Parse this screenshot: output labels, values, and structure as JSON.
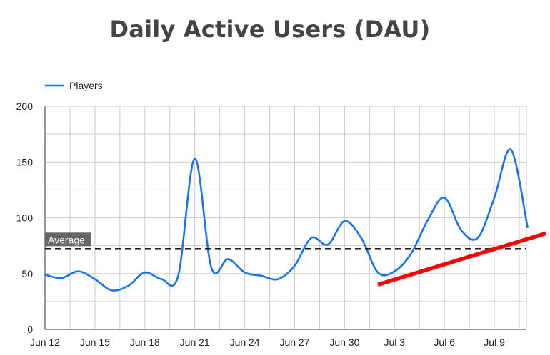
{
  "chart_data": {
    "type": "line",
    "title": "Daily Active Users (DAU)",
    "xlabel": "",
    "ylabel": "",
    "ylim": [
      0,
      200
    ],
    "yticks": [
      0,
      50,
      100,
      150,
      200
    ],
    "x_tick_labels": [
      "Jun 12",
      "Jun 15",
      "Jun 18",
      "Jun 21",
      "Jun 24",
      "Jun 27",
      "Jun 30",
      "Jul 3",
      "Jul 6",
      "Jul 9"
    ],
    "grid": true,
    "legend_position": "top-left",
    "series": [
      {
        "name": "Players",
        "color": "#1a73e8",
        "values": [
          {
            "x": "2023-06-12",
            "y": 49
          },
          {
            "x": "2023-06-13",
            "y": 46
          },
          {
            "x": "2023-06-14",
            "y": 52
          },
          {
            "x": "2023-06-15",
            "y": 45
          },
          {
            "x": "2023-06-16",
            "y": 35
          },
          {
            "x": "2023-06-17",
            "y": 39
          },
          {
            "x": "2023-06-18",
            "y": 51
          },
          {
            "x": "2023-06-19",
            "y": 45
          },
          {
            "x": "2023-06-20",
            "y": 48
          },
          {
            "x": "2023-06-21",
            "y": 153
          },
          {
            "x": "2023-06-22",
            "y": 55
          },
          {
            "x": "2023-06-23",
            "y": 63
          },
          {
            "x": "2023-06-24",
            "y": 51
          },
          {
            "x": "2023-06-25",
            "y": 48
          },
          {
            "x": "2023-06-26",
            "y": 45
          },
          {
            "x": "2023-06-27",
            "y": 57
          },
          {
            "x": "2023-06-28",
            "y": 82
          },
          {
            "x": "2023-06-29",
            "y": 76
          },
          {
            "x": "2023-06-30",
            "y": 97
          },
          {
            "x": "2023-07-01",
            "y": 82
          },
          {
            "x": "2023-07-02",
            "y": 51
          },
          {
            "x": "2023-07-03",
            "y": 52
          },
          {
            "x": "2023-07-04",
            "y": 68
          },
          {
            "x": "2023-07-05",
            "y": 98
          },
          {
            "x": "2023-07-06",
            "y": 118
          },
          {
            "x": "2023-07-07",
            "y": 89
          },
          {
            "x": "2023-07-08",
            "y": 82
          },
          {
            "x": "2023-07-09",
            "y": 118
          },
          {
            "x": "2023-07-10",
            "y": 161
          },
          {
            "x": "2023-07-11",
            "y": 91
          }
        ]
      }
    ],
    "annotations": [
      {
        "kind": "horizontal-line",
        "label": "Average",
        "y": 72,
        "style": "dashed",
        "color": "#000000"
      },
      {
        "kind": "trend-line",
        "color": "#ff0000",
        "from": {
          "x": "2023-07-02",
          "y": 40
        },
        "to": {
          "x": "2023-07-12",
          "y": 86
        }
      }
    ]
  }
}
